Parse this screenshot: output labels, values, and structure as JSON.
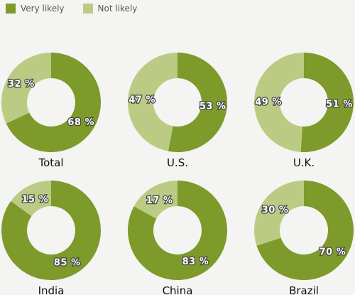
{
  "legend": [
    {
      "label": "Very likely",
      "color": "#7d9a2a"
    },
    {
      "label": "Not likely",
      "color": "#bccb84"
    }
  ],
  "chart_data": {
    "type": "pie",
    "title": "",
    "series": [
      {
        "name": "Very likely",
        "color": "#7d9a2a"
      },
      {
        "name": "Not likely",
        "color": "#bccb84"
      }
    ],
    "charts": [
      {
        "label": "Total",
        "very_likely": 68,
        "not_likely": 32
      },
      {
        "label": "U.S.",
        "very_likely": 53,
        "not_likely": 47
      },
      {
        "label": "U.K.",
        "very_likely": 51,
        "not_likely": 49
      },
      {
        "label": "India",
        "very_likely": 85,
        "not_likely": 15
      },
      {
        "label": "China",
        "very_likely": 83,
        "not_likely": 17
      },
      {
        "label": "Brazil",
        "very_likely": 70,
        "not_likely": 30
      }
    ],
    "value_suffix": " %"
  }
}
